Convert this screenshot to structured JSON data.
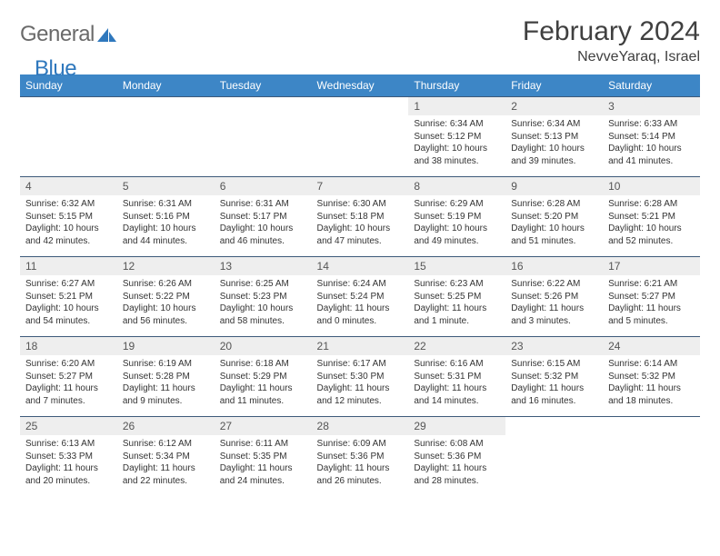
{
  "brand": {
    "part1": "General",
    "part2": "Blue"
  },
  "title": "February 2024",
  "location": "NevveYaraq, Israel",
  "colors": {
    "header_bg": "#3d86c6",
    "header_text": "#ffffff",
    "rule": "#3d5a7a",
    "daynum_bg": "#eeeeee",
    "brand_gray": "#6a6a6a",
    "brand_blue": "#2f78bd",
    "text": "#333333"
  },
  "typography": {
    "title_fontsize": 30,
    "location_fontsize": 16,
    "weekday_fontsize": 12,
    "daynum_fontsize": 12,
    "body_fontsize": 10
  },
  "weekdays": [
    "Sunday",
    "Monday",
    "Tuesday",
    "Wednesday",
    "Thursday",
    "Friday",
    "Saturday"
  ],
  "labels": {
    "sunrise": "Sunrise:",
    "sunset": "Sunset:",
    "daylight": "Daylight:"
  },
  "weeks": [
    [
      null,
      null,
      null,
      null,
      {
        "n": "1",
        "sr": "6:34 AM",
        "ss": "5:12 PM",
        "dl": "10 hours and 38 minutes."
      },
      {
        "n": "2",
        "sr": "6:34 AM",
        "ss": "5:13 PM",
        "dl": "10 hours and 39 minutes."
      },
      {
        "n": "3",
        "sr": "6:33 AM",
        "ss": "5:14 PM",
        "dl": "10 hours and 41 minutes."
      }
    ],
    [
      {
        "n": "4",
        "sr": "6:32 AM",
        "ss": "5:15 PM",
        "dl": "10 hours and 42 minutes."
      },
      {
        "n": "5",
        "sr": "6:31 AM",
        "ss": "5:16 PM",
        "dl": "10 hours and 44 minutes."
      },
      {
        "n": "6",
        "sr": "6:31 AM",
        "ss": "5:17 PM",
        "dl": "10 hours and 46 minutes."
      },
      {
        "n": "7",
        "sr": "6:30 AM",
        "ss": "5:18 PM",
        "dl": "10 hours and 47 minutes."
      },
      {
        "n": "8",
        "sr": "6:29 AM",
        "ss": "5:19 PM",
        "dl": "10 hours and 49 minutes."
      },
      {
        "n": "9",
        "sr": "6:28 AM",
        "ss": "5:20 PM",
        "dl": "10 hours and 51 minutes."
      },
      {
        "n": "10",
        "sr": "6:28 AM",
        "ss": "5:21 PM",
        "dl": "10 hours and 52 minutes."
      }
    ],
    [
      {
        "n": "11",
        "sr": "6:27 AM",
        "ss": "5:21 PM",
        "dl": "10 hours and 54 minutes."
      },
      {
        "n": "12",
        "sr": "6:26 AM",
        "ss": "5:22 PM",
        "dl": "10 hours and 56 minutes."
      },
      {
        "n": "13",
        "sr": "6:25 AM",
        "ss": "5:23 PM",
        "dl": "10 hours and 58 minutes."
      },
      {
        "n": "14",
        "sr": "6:24 AM",
        "ss": "5:24 PM",
        "dl": "11 hours and 0 minutes."
      },
      {
        "n": "15",
        "sr": "6:23 AM",
        "ss": "5:25 PM",
        "dl": "11 hours and 1 minute."
      },
      {
        "n": "16",
        "sr": "6:22 AM",
        "ss": "5:26 PM",
        "dl": "11 hours and 3 minutes."
      },
      {
        "n": "17",
        "sr": "6:21 AM",
        "ss": "5:27 PM",
        "dl": "11 hours and 5 minutes."
      }
    ],
    [
      {
        "n": "18",
        "sr": "6:20 AM",
        "ss": "5:27 PM",
        "dl": "11 hours and 7 minutes."
      },
      {
        "n": "19",
        "sr": "6:19 AM",
        "ss": "5:28 PM",
        "dl": "11 hours and 9 minutes."
      },
      {
        "n": "20",
        "sr": "6:18 AM",
        "ss": "5:29 PM",
        "dl": "11 hours and 11 minutes."
      },
      {
        "n": "21",
        "sr": "6:17 AM",
        "ss": "5:30 PM",
        "dl": "11 hours and 12 minutes."
      },
      {
        "n": "22",
        "sr": "6:16 AM",
        "ss": "5:31 PM",
        "dl": "11 hours and 14 minutes."
      },
      {
        "n": "23",
        "sr": "6:15 AM",
        "ss": "5:32 PM",
        "dl": "11 hours and 16 minutes."
      },
      {
        "n": "24",
        "sr": "6:14 AM",
        "ss": "5:32 PM",
        "dl": "11 hours and 18 minutes."
      }
    ],
    [
      {
        "n": "25",
        "sr": "6:13 AM",
        "ss": "5:33 PM",
        "dl": "11 hours and 20 minutes."
      },
      {
        "n": "26",
        "sr": "6:12 AM",
        "ss": "5:34 PM",
        "dl": "11 hours and 22 minutes."
      },
      {
        "n": "27",
        "sr": "6:11 AM",
        "ss": "5:35 PM",
        "dl": "11 hours and 24 minutes."
      },
      {
        "n": "28",
        "sr": "6:09 AM",
        "ss": "5:36 PM",
        "dl": "11 hours and 26 minutes."
      },
      {
        "n": "29",
        "sr": "6:08 AM",
        "ss": "5:36 PM",
        "dl": "11 hours and 28 minutes."
      },
      null,
      null
    ]
  ]
}
